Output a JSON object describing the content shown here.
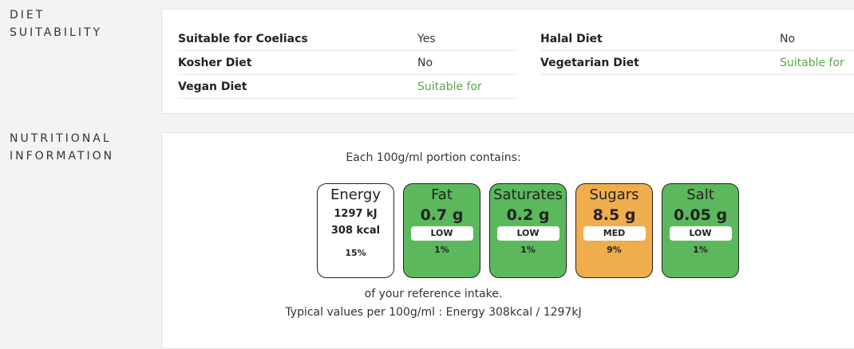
{
  "diet": {
    "section_label_line1": "DIET",
    "section_label_line2": "SUITABILITY",
    "left_rows": [
      {
        "key": "Suitable for Coeliacs",
        "value": "Yes"
      },
      {
        "key": "Kosher Diet",
        "value": "No"
      },
      {
        "key": "Vegan Diet",
        "value": "Suitable for"
      }
    ],
    "right_rows": [
      {
        "key": "Halal Diet",
        "value": "No"
      },
      {
        "key": "Vegetarian Diet",
        "value": "Suitable for"
      }
    ]
  },
  "nutrition": {
    "section_label_line1": "NUTRITIONAL",
    "section_label_line2": "INFORMATION",
    "portion_text": "Each 100g/ml portion contains:",
    "energy": {
      "title": "Energy",
      "kj": "1297 kJ",
      "kcal": "308 kcal",
      "percent": "15%"
    },
    "tiles": [
      {
        "title": "Fat",
        "amount": "0.7 g",
        "level": "LOW",
        "percent": "1%"
      },
      {
        "title": "Saturates",
        "amount": "0.2 g",
        "level": "LOW",
        "percent": "1%"
      },
      {
        "title": "Sugars",
        "amount": "8.5 g",
        "level": "MED",
        "percent": "9%"
      },
      {
        "title": "Salt",
        "amount": "0.05 g",
        "level": "LOW",
        "percent": "1%"
      }
    ],
    "reference_text": "of your reference intake.",
    "typical_text": "Typical values per 100g/ml : Energy 308kcal / 1297kJ"
  },
  "colors": {
    "low": "#5cb85c",
    "med": "#f0ad4e",
    "suitable_text": "#5aa84b"
  }
}
